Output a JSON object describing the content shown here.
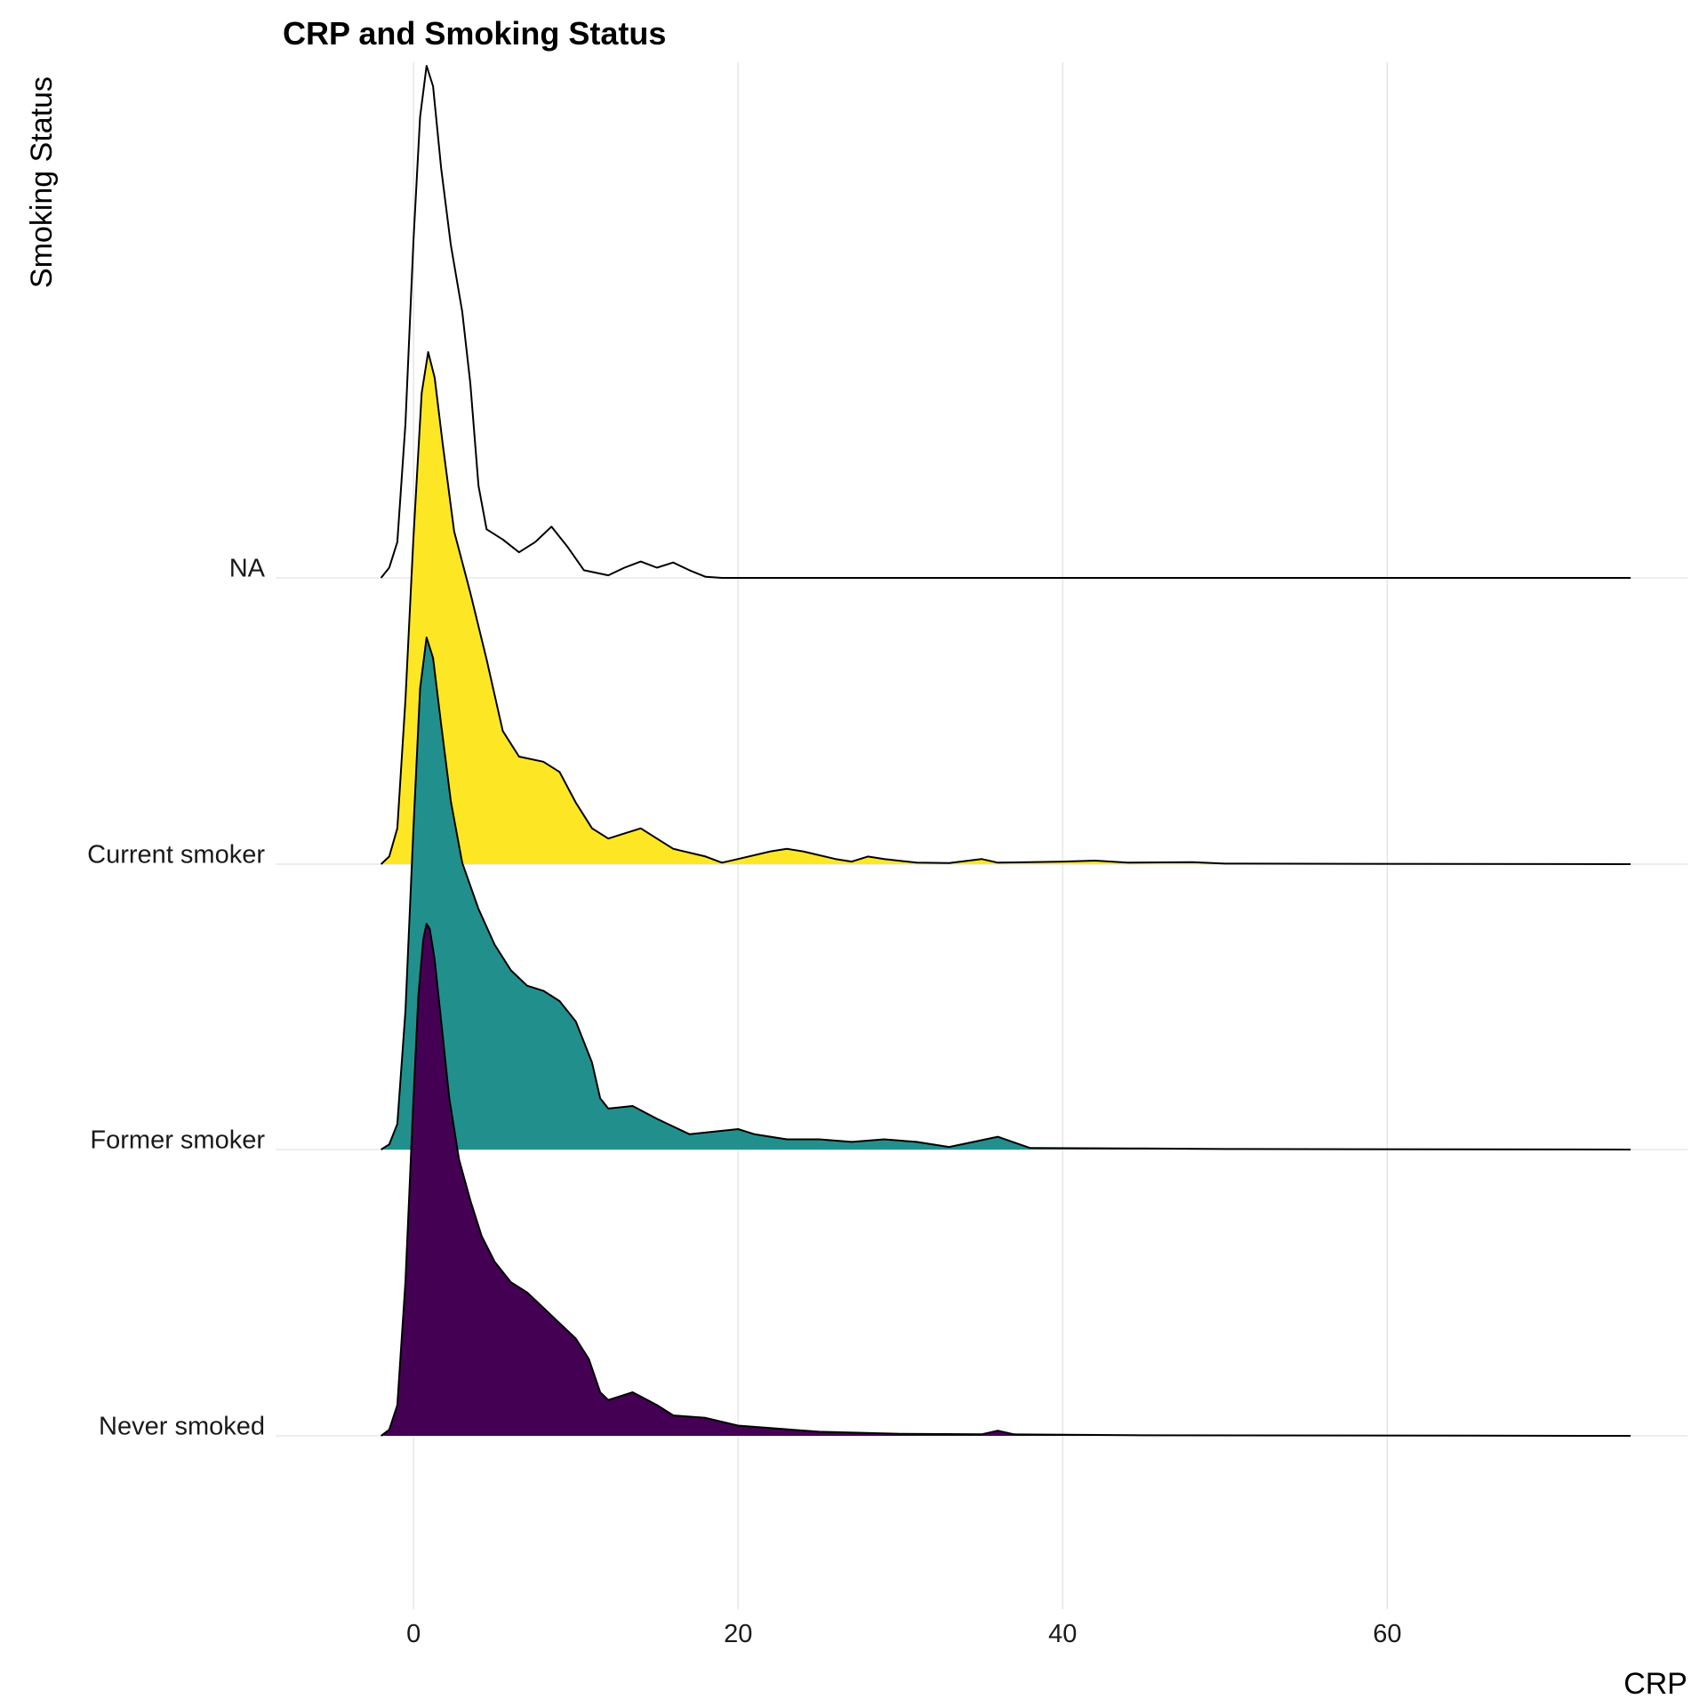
{
  "chart_data": {
    "type": "ridgeline",
    "title": "CRP and Smoking Status",
    "xlabel": "CRP",
    "ylabel": "Smoking Status",
    "xlim": [
      -8.5,
      78.5
    ],
    "x_ticks": [
      0,
      20,
      40,
      60
    ],
    "x_range_of_densities": [
      -2,
      75
    ],
    "legend": "none",
    "grid": true,
    "series": [
      {
        "name": "Never smoked",
        "fill": "#440154",
        "density": [
          [
            -2,
            0
          ],
          [
            -1.5,
            0.012
          ],
          [
            -1,
            0.06
          ],
          [
            -0.5,
            0.3
          ],
          [
            0,
            0.66
          ],
          [
            0.3,
            0.86
          ],
          [
            0.6,
            0.97
          ],
          [
            0.8,
            1.0
          ],
          [
            1.0,
            0.99
          ],
          [
            1.3,
            0.93
          ],
          [
            1.7,
            0.81
          ],
          [
            2.2,
            0.66
          ],
          [
            2.8,
            0.54
          ],
          [
            3.5,
            0.46
          ],
          [
            4.2,
            0.39
          ],
          [
            5.0,
            0.34
          ],
          [
            6.0,
            0.3
          ],
          [
            7.0,
            0.28
          ],
          [
            8.0,
            0.25
          ],
          [
            9.0,
            0.22
          ],
          [
            10.0,
            0.19
          ],
          [
            10.8,
            0.15
          ],
          [
            11.5,
            0.085
          ],
          [
            12.0,
            0.07
          ],
          [
            13.5,
            0.085
          ],
          [
            15,
            0.06
          ],
          [
            16,
            0.04
          ],
          [
            18,
            0.035
          ],
          [
            20,
            0.02
          ],
          [
            25,
            0.008
          ],
          [
            30,
            0.004
          ],
          [
            35,
            0.003
          ],
          [
            36,
            0.01
          ],
          [
            37,
            0.003
          ],
          [
            45,
            0.001
          ],
          [
            75,
            0
          ]
        ]
      },
      {
        "name": "Former smoker",
        "fill": "#21908C",
        "density": [
          [
            -2,
            0
          ],
          [
            -1.5,
            0.01
          ],
          [
            -1,
            0.05
          ],
          [
            -0.5,
            0.27
          ],
          [
            0,
            0.63
          ],
          [
            0.4,
            0.9
          ],
          [
            0.8,
            1.0
          ],
          [
            1.2,
            0.96
          ],
          [
            1.7,
            0.83
          ],
          [
            2.3,
            0.68
          ],
          [
            3,
            0.56
          ],
          [
            4,
            0.47
          ],
          [
            5,
            0.4
          ],
          [
            6,
            0.35
          ],
          [
            7,
            0.32
          ],
          [
            8,
            0.31
          ],
          [
            9,
            0.29
          ],
          [
            10,
            0.25
          ],
          [
            11,
            0.17
          ],
          [
            11.5,
            0.1
          ],
          [
            12,
            0.08
          ],
          [
            13.5,
            0.085
          ],
          [
            15,
            0.06
          ],
          [
            17,
            0.03
          ],
          [
            20,
            0.04
          ],
          [
            21,
            0.03
          ],
          [
            23,
            0.02
          ],
          [
            25,
            0.02
          ],
          [
            27,
            0.015
          ],
          [
            29,
            0.02
          ],
          [
            31,
            0.015
          ],
          [
            33,
            0.005
          ],
          [
            36,
            0.025
          ],
          [
            38,
            0.003
          ],
          [
            45,
            0.002
          ],
          [
            50,
            0.001
          ],
          [
            75,
            0
          ]
        ]
      },
      {
        "name": "Current smoker",
        "fill": "#FDE725",
        "density": [
          [
            -2,
            0
          ],
          [
            -1.5,
            0.015
          ],
          [
            -1,
            0.07
          ],
          [
            -0.5,
            0.32
          ],
          [
            0,
            0.64
          ],
          [
            0.5,
            0.92
          ],
          [
            0.9,
            1.0
          ],
          [
            1.3,
            0.95
          ],
          [
            1.8,
            0.82
          ],
          [
            2.5,
            0.65
          ],
          [
            3.5,
            0.53
          ],
          [
            4.5,
            0.4
          ],
          [
            5.5,
            0.26
          ],
          [
            6.5,
            0.21
          ],
          [
            8,
            0.2
          ],
          [
            9,
            0.18
          ],
          [
            10,
            0.12
          ],
          [
            11,
            0.07
          ],
          [
            12,
            0.05
          ],
          [
            13,
            0.06
          ],
          [
            14,
            0.07
          ],
          [
            15,
            0.05
          ],
          [
            16,
            0.03
          ],
          [
            18,
            0.015
          ],
          [
            19,
            0.003
          ],
          [
            20,
            0.01
          ],
          [
            22,
            0.025
          ],
          [
            23,
            0.03
          ],
          [
            24,
            0.025
          ],
          [
            26,
            0.01
          ],
          [
            27,
            0.005
          ],
          [
            28,
            0.015
          ],
          [
            29,
            0.01
          ],
          [
            31,
            0.003
          ],
          [
            33,
            0.002
          ],
          [
            35,
            0.01
          ],
          [
            36,
            0.003
          ],
          [
            40,
            0.005
          ],
          [
            42,
            0.007
          ],
          [
            44,
            0.003
          ],
          [
            48,
            0.004
          ],
          [
            50,
            0.001
          ],
          [
            75,
            0
          ]
        ]
      },
      {
        "name": "NA",
        "fill": "none",
        "density": [
          [
            -2,
            0
          ],
          [
            -1.5,
            0.02
          ],
          [
            -1,
            0.07
          ],
          [
            -0.5,
            0.3
          ],
          [
            0,
            0.66
          ],
          [
            0.4,
            0.9
          ],
          [
            0.8,
            1.0
          ],
          [
            1.2,
            0.96
          ],
          [
            1.7,
            0.8
          ],
          [
            2.3,
            0.65
          ],
          [
            3,
            0.52
          ],
          [
            3.5,
            0.38
          ],
          [
            4,
            0.18
          ],
          [
            4.5,
            0.095
          ],
          [
            5.5,
            0.075
          ],
          [
            6.5,
            0.05
          ],
          [
            7.5,
            0.07
          ],
          [
            8.5,
            0.1
          ],
          [
            9.5,
            0.06
          ],
          [
            10.5,
            0.015
          ],
          [
            12,
            0.005
          ],
          [
            13,
            0.02
          ],
          [
            14,
            0.032
          ],
          [
            15,
            0.02
          ],
          [
            16,
            0.03
          ],
          [
            17,
            0.015
          ],
          [
            18,
            0.002
          ],
          [
            19,
            0
          ],
          [
            75,
            0
          ]
        ]
      }
    ]
  }
}
